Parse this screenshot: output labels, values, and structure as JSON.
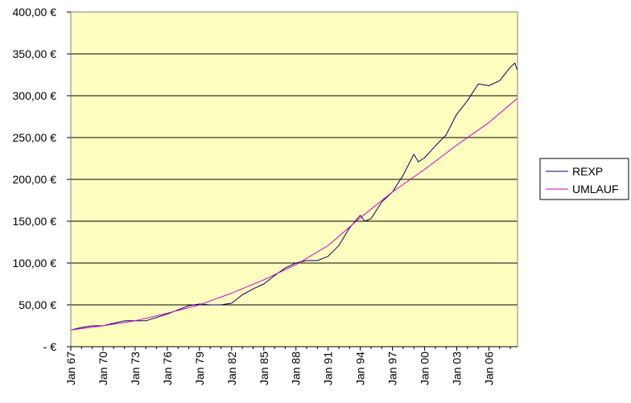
{
  "chart_data": {
    "type": "line",
    "title": "",
    "xlabel": "",
    "ylabel": "",
    "ylim": [
      0,
      400
    ],
    "y_ticks": [
      "400,00 €",
      "350,00 €",
      "300,00 €",
      "250,00 €",
      "200,00 €",
      "150,00 €",
      "100,00 €",
      "50,00 €",
      "-     €"
    ],
    "x_ticks": [
      "Jan 67",
      "Jan 70",
      "Jan 73",
      "Jan 76",
      "Jan 79",
      "Jan 82",
      "Jan 85",
      "Jan 88",
      "Jan 91",
      "Jan 94",
      "Jan 97",
      "Jan 00",
      "Jan 03",
      "Jan 06"
    ],
    "x_range": [
      "Jan 67",
      "Sep 08"
    ],
    "grid": "horizontal",
    "plot_background": "#ffffc0",
    "legend_position": "right",
    "series": [
      {
        "name": "REXP",
        "color": "#000066",
        "points": [
          [
            "1967-01",
            20
          ],
          [
            "1968-01",
            23
          ],
          [
            "1969-01",
            25
          ],
          [
            "1970-01",
            25
          ],
          [
            "1971-01",
            28
          ],
          [
            "1972-01",
            31
          ],
          [
            "1973-01",
            31
          ],
          [
            "1974-01",
            31
          ],
          [
            "1975-01",
            35
          ],
          [
            "1976-01",
            39
          ],
          [
            "1977-01",
            44
          ],
          [
            "1978-01",
            49
          ],
          [
            "1979-01",
            51
          ],
          [
            "1980-01",
            50
          ],
          [
            "1981-01",
            50
          ],
          [
            "1982-01",
            52
          ],
          [
            "1983-01",
            62
          ],
          [
            "1984-01",
            69
          ],
          [
            "1985-01",
            75
          ],
          [
            "1986-01",
            85
          ],
          [
            "1987-01",
            94
          ],
          [
            "1988-01",
            100
          ],
          [
            "1989-01",
            103
          ],
          [
            "1990-01",
            103
          ],
          [
            "1991-01",
            108
          ],
          [
            "1992-01",
            121
          ],
          [
            "1993-01",
            142
          ],
          [
            "1994-01",
            157
          ],
          [
            "1994-06",
            150
          ],
          [
            "1995-01",
            153
          ],
          [
            "1996-01",
            173
          ],
          [
            "1997-01",
            185
          ],
          [
            "1998-01",
            205
          ],
          [
            "1999-01",
            230
          ],
          [
            "1999-06",
            221
          ],
          [
            "2000-01",
            226
          ],
          [
            "2001-01",
            240
          ],
          [
            "2002-01",
            253
          ],
          [
            "2003-01",
            278
          ],
          [
            "2004-01",
            294
          ],
          [
            "2005-01",
            314
          ],
          [
            "2006-01",
            312
          ],
          [
            "2007-01",
            318
          ],
          [
            "2008-01",
            334
          ],
          [
            "2008-06",
            339
          ],
          [
            "2008-09",
            330
          ]
        ]
      },
      {
        "name": "UMLAUF",
        "color": "#cc00cc",
        "points": [
          [
            "1967-01",
            20
          ],
          [
            "1970-01",
            25
          ],
          [
            "1973-01",
            31
          ],
          [
            "1976-01",
            40
          ],
          [
            "1979-01",
            50
          ],
          [
            "1982-01",
            64
          ],
          [
            "1985-01",
            80
          ],
          [
            "1988-01",
            98
          ],
          [
            "1991-01",
            121
          ],
          [
            "1994-01",
            154
          ],
          [
            "1997-01",
            185
          ],
          [
            "2000-01",
            212
          ],
          [
            "2003-01",
            241
          ],
          [
            "2006-01",
            268
          ],
          [
            "2008-09",
            297
          ]
        ]
      }
    ]
  }
}
